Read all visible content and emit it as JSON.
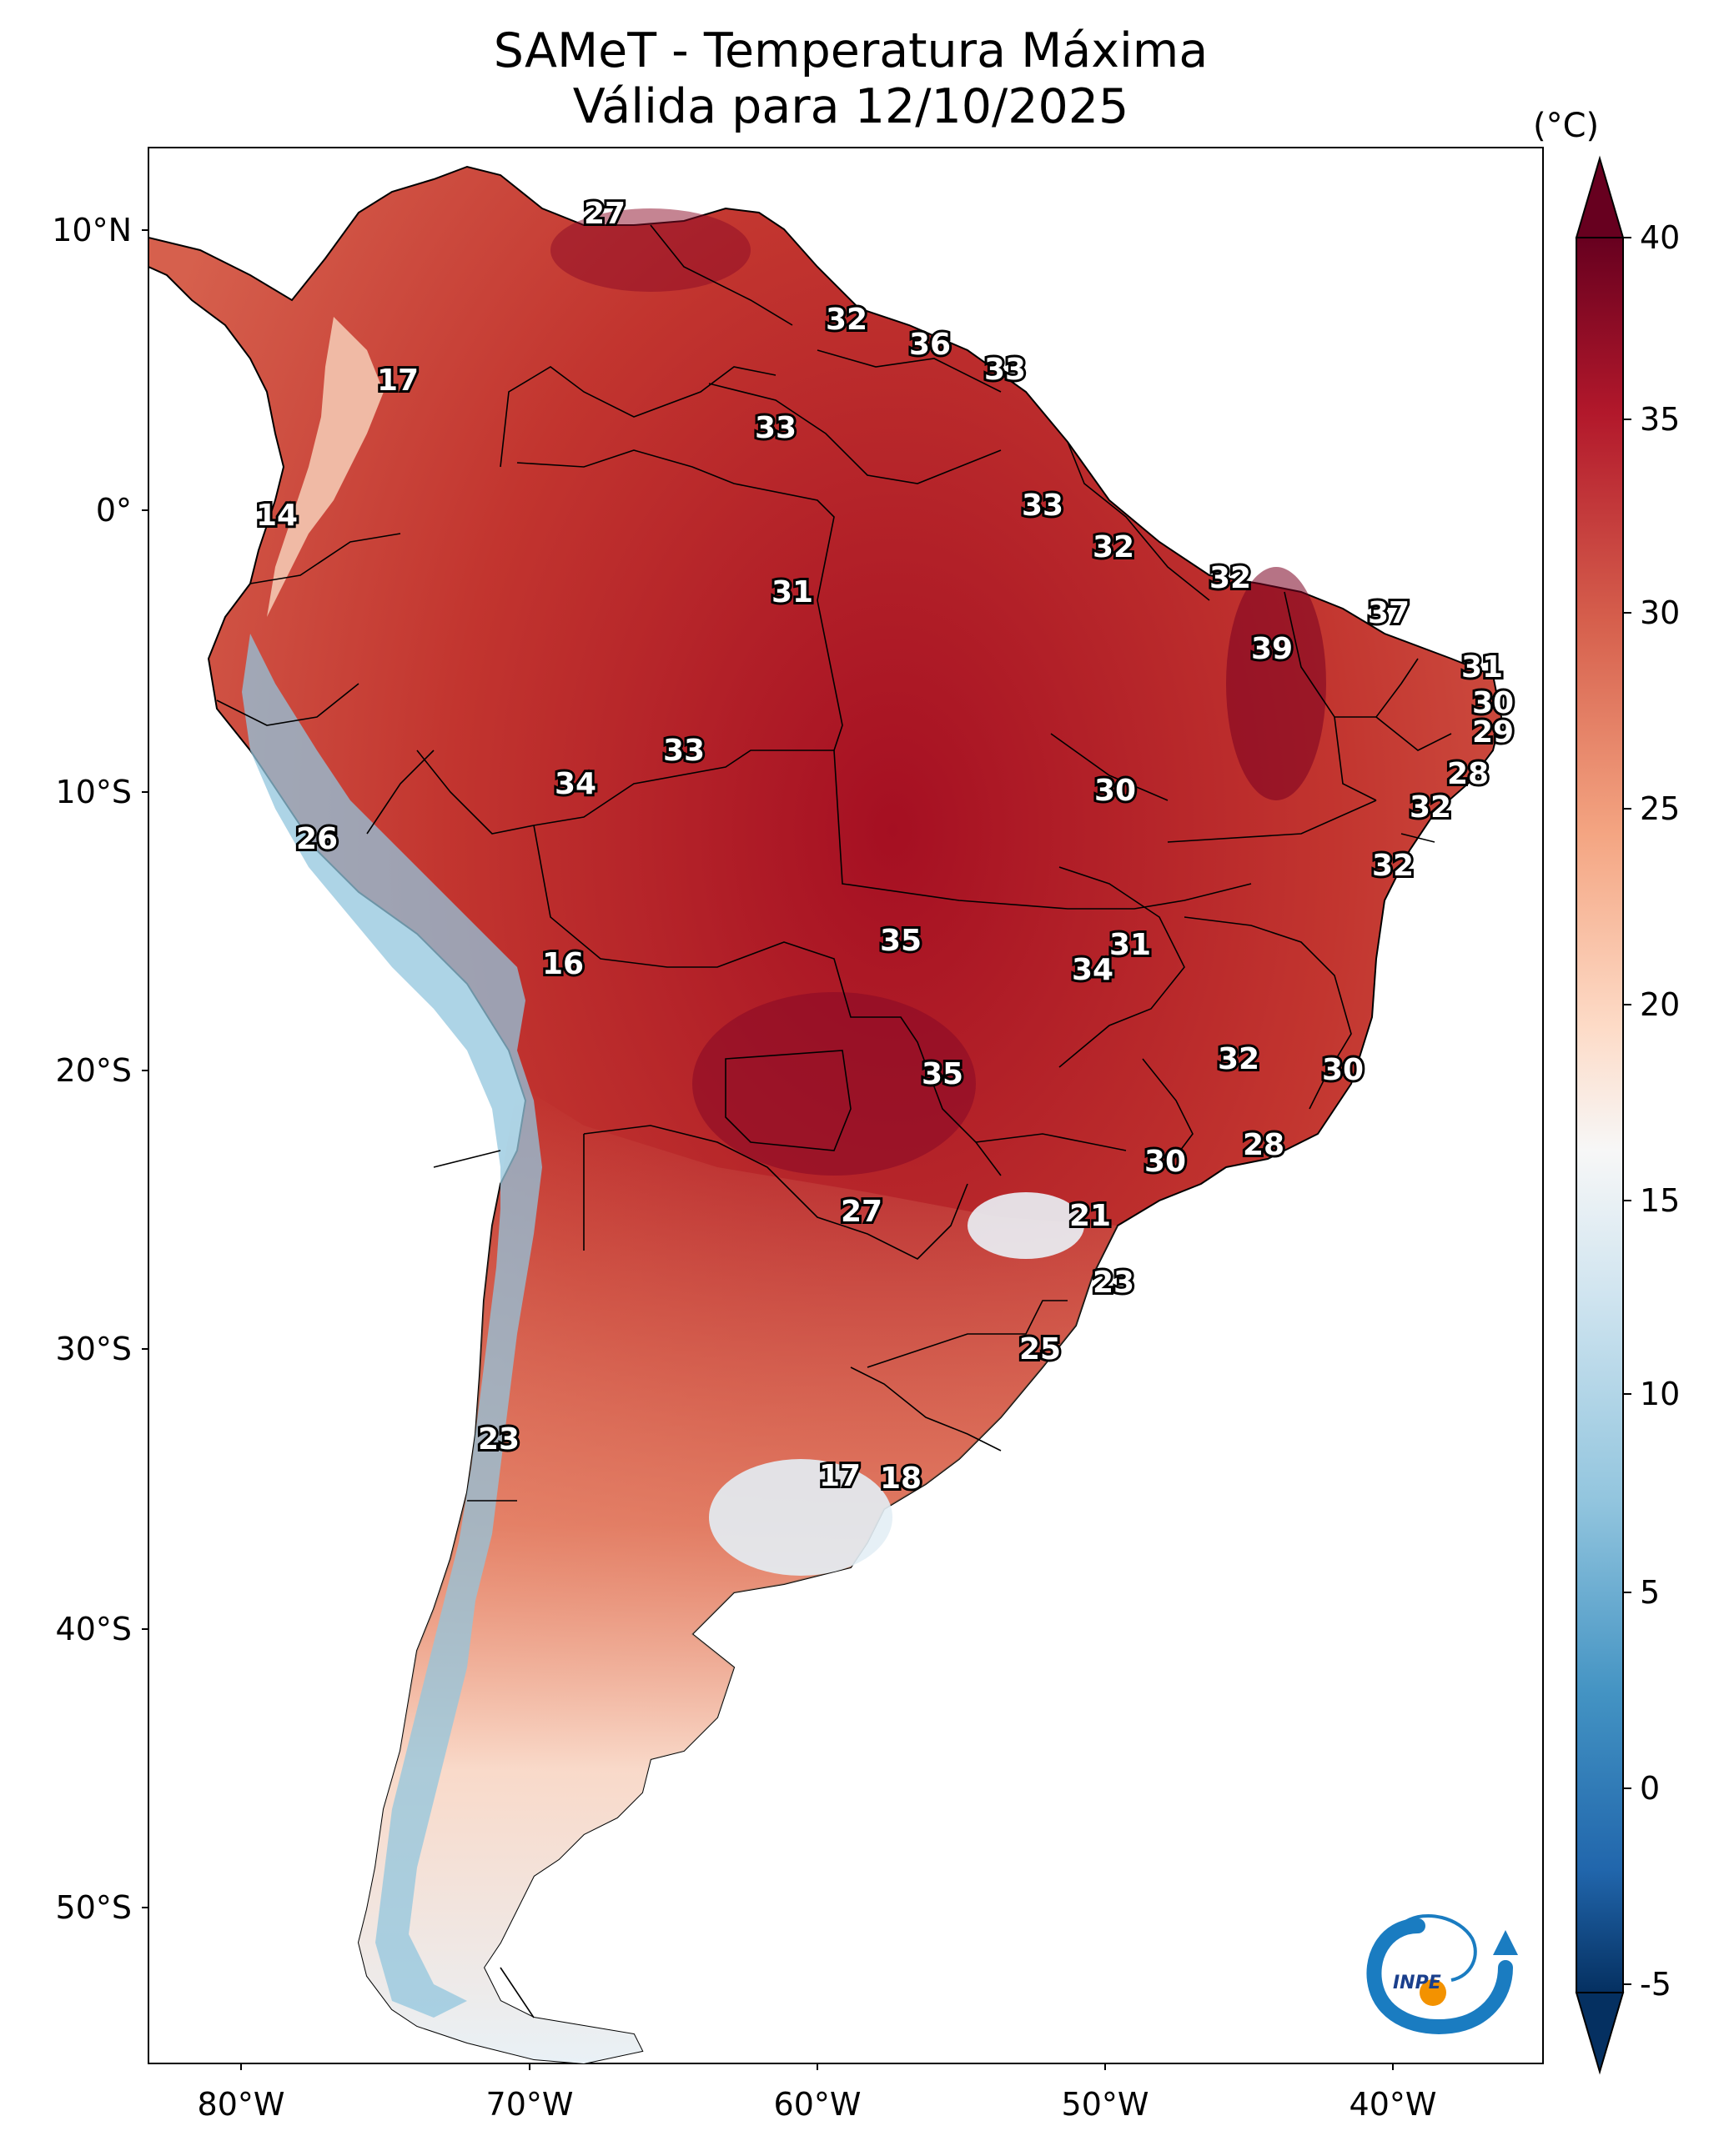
{
  "title": {
    "line1": "SAMeT - Temperatura Máxima",
    "line2": "Válida para 12/10/2025"
  },
  "colorbar": {
    "unit": "(°C)",
    "ticks": [
      "40",
      "35",
      "30",
      "25",
      "20",
      "15",
      "10",
      "5",
      "0",
      "-5"
    ],
    "colors": [
      "#67001f",
      "#b2182b",
      "#d6604d",
      "#f4a582",
      "#fddbc7",
      "#f7f7f7",
      "#d1e5f0",
      "#92c5de",
      "#4393c3",
      "#2166ac",
      "#053061"
    ]
  },
  "axes": {
    "lat_labels": [
      "10°N",
      "0°",
      "10°S",
      "20°S",
      "30°S",
      "40°S",
      "50°S"
    ],
    "lon_labels": [
      "80°W",
      "70°W",
      "60°W",
      "50°W",
      "40°W"
    ]
  },
  "map_values": [
    "27",
    "17",
    "32",
    "36",
    "33",
    "33",
    "14",
    "33",
    "31",
    "32",
    "32",
    "37",
    "39",
    "31",
    "30",
    "29",
    "33",
    "34",
    "26",
    "30",
    "28",
    "32",
    "32",
    "35",
    "31",
    "34",
    "16",
    "32",
    "30",
    "35",
    "28",
    "30",
    "27",
    "21",
    "23",
    "25",
    "23",
    "17",
    "18"
  ],
  "logo": {
    "text": "INPE",
    "colors": {
      "blue": "#1a7cc1",
      "orange": "#f39200"
    }
  }
}
